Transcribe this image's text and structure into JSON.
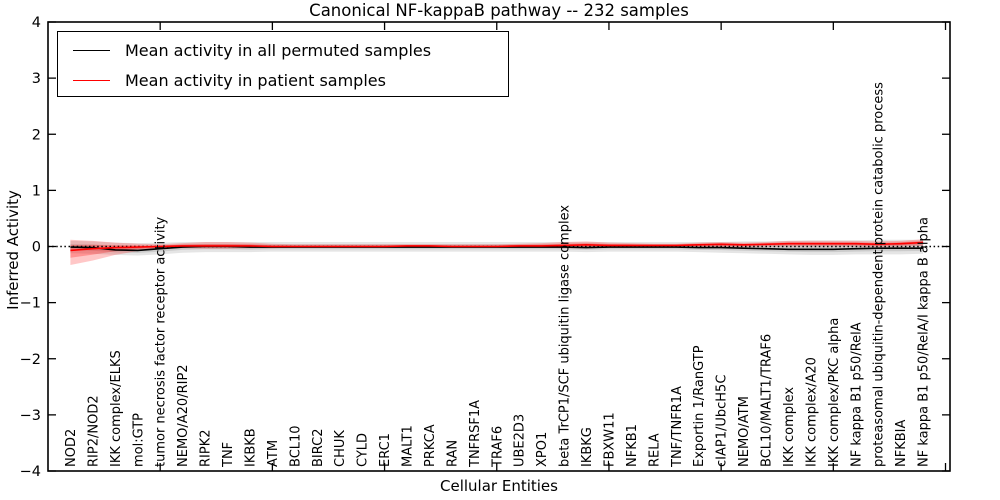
{
  "title": "Canonical NF-kappaB pathway -- 232 samples",
  "legend": {
    "entries": [
      {
        "label": "Mean activity in all permuted samples",
        "color": "#000000"
      },
      {
        "label": "Mean activity in patient samples",
        "color": "#ff0000"
      }
    ]
  },
  "chart_data": {
    "type": "line",
    "title": "Canonical NF-kappaB pathway -- 232 samples",
    "xlabel": "Cellular Entities",
    "ylabel": "Inferred Activity",
    "ylim": [
      -4,
      4
    ],
    "y_ticks": [
      4,
      3,
      2,
      1,
      0,
      -1,
      -2,
      -3,
      -4
    ],
    "x_major_tick_positions": [
      5,
      10,
      15,
      20,
      25,
      30,
      35,
      40
    ],
    "xlim": [
      0,
      40.2
    ],
    "grid": false,
    "legend_position": "upper left",
    "zero_reference_line": 0,
    "categories": [
      "NOD2",
      "RIP2/NOD2",
      "IKK complex/ELKS",
      "mol:GTP",
      "tumor necrosis factor receptor activity",
      "NEMO/A20/RIP2",
      "RIPK2",
      "TNF",
      "IKBKB",
      "ATM",
      "BCL10",
      "BIRC2",
      "CHUK",
      "CYLD",
      "ERC1",
      "MALT1",
      "PRKCA",
      "RAN",
      "TNFRSF1A",
      "TRAF6",
      "UBE2D3",
      "XPO1",
      "beta TrCP1/SCF ubiquitin ligase complex",
      "IKBKG",
      "FBXW11",
      "NFKB1",
      "RELA",
      "TNF/TNFR1A",
      "Exportin 1/RanGTP",
      "cIAP1/UbcH5C",
      "NEMO/ATM",
      "BCL10/MALT1/TRAF6",
      "IKK complex",
      "IKK complex/A20",
      "IKK complex/PKC alpha",
      "NF kappa B1 p50/RelA",
      "proteasomal ubiquitin-dependent protein catabolic process",
      "NFKBIA",
      "NF kappa B1 p50/RelA/I kappa B alpha"
    ],
    "series": [
      {
        "name": "Mean activity in all permuted samples",
        "color": "#000000",
        "band_color": "#888888",
        "values": [
          -0.01,
          -0.02,
          -0.06,
          -0.07,
          -0.04,
          -0.01,
          0.0,
          0.0,
          -0.01,
          -0.01,
          -0.01,
          -0.01,
          -0.01,
          -0.01,
          -0.01,
          -0.01,
          -0.01,
          -0.01,
          -0.01,
          -0.01,
          -0.01,
          -0.01,
          -0.01,
          -0.02,
          -0.01,
          -0.01,
          -0.01,
          -0.01,
          -0.02,
          -0.02,
          -0.03,
          -0.04,
          -0.05,
          -0.05,
          -0.05,
          -0.04,
          -0.03,
          -0.03,
          -0.03
        ],
        "band_upper": [
          0.1,
          0.09,
          0.07,
          0.06,
          0.07,
          0.08,
          0.08,
          0.08,
          0.08,
          0.08,
          0.08,
          0.08,
          0.08,
          0.08,
          0.08,
          0.08,
          0.08,
          0.08,
          0.08,
          0.08,
          0.08,
          0.08,
          0.08,
          0.08,
          0.08,
          0.08,
          0.08,
          0.08,
          0.08,
          0.08,
          0.09,
          0.09,
          0.1,
          0.11,
          0.11,
          0.11,
          0.12,
          0.12,
          0.12
        ],
        "band_lower": [
          -0.12,
          -0.13,
          -0.15,
          -0.16,
          -0.14,
          -0.11,
          -0.1,
          -0.1,
          -0.1,
          -0.09,
          -0.09,
          -0.09,
          -0.09,
          -0.09,
          -0.09,
          -0.09,
          -0.09,
          -0.09,
          -0.09,
          -0.09,
          -0.09,
          -0.09,
          -0.09,
          -0.1,
          -0.09,
          -0.09,
          -0.09,
          -0.09,
          -0.1,
          -0.11,
          -0.12,
          -0.13,
          -0.14,
          -0.15,
          -0.15,
          -0.14,
          -0.14,
          -0.14,
          -0.13
        ]
      },
      {
        "name": "Mean activity in patient samples",
        "color": "#ff0000",
        "band_color": "#ff0000",
        "values": [
          -0.07,
          -0.04,
          -0.02,
          -0.01,
          0.0,
          0.01,
          0.01,
          0.01,
          0.01,
          0.0,
          0.0,
          0.0,
          0.0,
          0.0,
          0.0,
          0.01,
          0.01,
          0.0,
          0.0,
          0.0,
          0.01,
          0.01,
          0.02,
          0.03,
          0.02,
          0.02,
          0.02,
          0.02,
          0.03,
          0.04,
          0.03,
          0.04,
          0.05,
          0.05,
          0.05,
          0.05,
          0.04,
          0.05,
          0.07
        ],
        "band_upper": [
          0.12,
          0.1,
          0.07,
          0.05,
          0.04,
          0.06,
          0.08,
          0.08,
          0.07,
          0.05,
          0.04,
          0.04,
          0.04,
          0.04,
          0.04,
          0.04,
          0.04,
          0.04,
          0.04,
          0.04,
          0.05,
          0.06,
          0.08,
          0.09,
          0.07,
          0.06,
          0.05,
          0.05,
          0.07,
          0.08,
          0.07,
          0.08,
          0.1,
          0.1,
          0.1,
          0.1,
          0.09,
          0.1,
          0.13
        ],
        "band_lower": [
          -0.33,
          -0.25,
          -0.15,
          -0.08,
          -0.04,
          -0.03,
          -0.04,
          -0.04,
          -0.03,
          -0.03,
          -0.02,
          -0.02,
          -0.02,
          -0.02,
          -0.02,
          -0.02,
          -0.02,
          -0.02,
          -0.02,
          -0.02,
          -0.02,
          -0.02,
          -0.03,
          -0.03,
          -0.02,
          -0.02,
          -0.02,
          -0.01,
          -0.01,
          -0.01,
          -0.01,
          0.0,
          0.0,
          0.0,
          0.0,
          0.0,
          -0.01,
          0.0,
          0.01
        ]
      }
    ]
  }
}
